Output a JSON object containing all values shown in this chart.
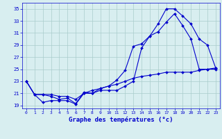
{
  "title": "Graphe des températures (°c)",
  "background_color": "#d8eef0",
  "grid_color": "#aacccc",
  "line_color": "#0000cc",
  "xlim": [
    -0.5,
    23.5
  ],
  "ylim": [
    18.5,
    36
  ],
  "yticks": [
    19,
    21,
    23,
    25,
    27,
    29,
    31,
    33,
    35
  ],
  "xticks": [
    0,
    1,
    2,
    3,
    4,
    5,
    6,
    7,
    8,
    9,
    10,
    11,
    12,
    13,
    14,
    15,
    16,
    17,
    18,
    19,
    20,
    21,
    22,
    23
  ],
  "line1_x": [
    0,
    1,
    2,
    3,
    4,
    5,
    6,
    7,
    8,
    9,
    10,
    11,
    12,
    13,
    14,
    15,
    16,
    17,
    18,
    19,
    20,
    21,
    22,
    23
  ],
  "line1_y": [
    23.0,
    20.8,
    20.8,
    20.5,
    20.0,
    20.2,
    19.3,
    21.2,
    21.0,
    21.5,
    21.5,
    21.5,
    22.2,
    23.0,
    28.5,
    30.5,
    32.5,
    35.0,
    35.0,
    33.8,
    32.5,
    30.0,
    29.0,
    25.2
  ],
  "line2_x": [
    0,
    1,
    2,
    3,
    4,
    5,
    6,
    7,
    8,
    9,
    10,
    11,
    12,
    13,
    14,
    15,
    16,
    17,
    18,
    19,
    20,
    21,
    22,
    23
  ],
  "line2_y": [
    23.0,
    20.8,
    19.5,
    19.8,
    19.8,
    19.8,
    19.2,
    21.0,
    21.0,
    21.8,
    22.2,
    23.2,
    24.8,
    28.8,
    29.2,
    30.5,
    31.2,
    32.8,
    34.2,
    32.2,
    30.0,
    25.0,
    25.0,
    25.0
  ],
  "line3_x": [
    0,
    1,
    2,
    3,
    4,
    5,
    6,
    7,
    8,
    9,
    10,
    11,
    12,
    13,
    14,
    15,
    16,
    17,
    18,
    19,
    20,
    21,
    22,
    23
  ],
  "line3_y": [
    23.0,
    20.8,
    20.8,
    20.8,
    20.5,
    20.5,
    20.0,
    21.0,
    21.5,
    21.8,
    22.2,
    22.5,
    23.0,
    23.5,
    23.8,
    24.0,
    24.2,
    24.5,
    24.5,
    24.5,
    24.5,
    24.8,
    25.0,
    25.2
  ]
}
